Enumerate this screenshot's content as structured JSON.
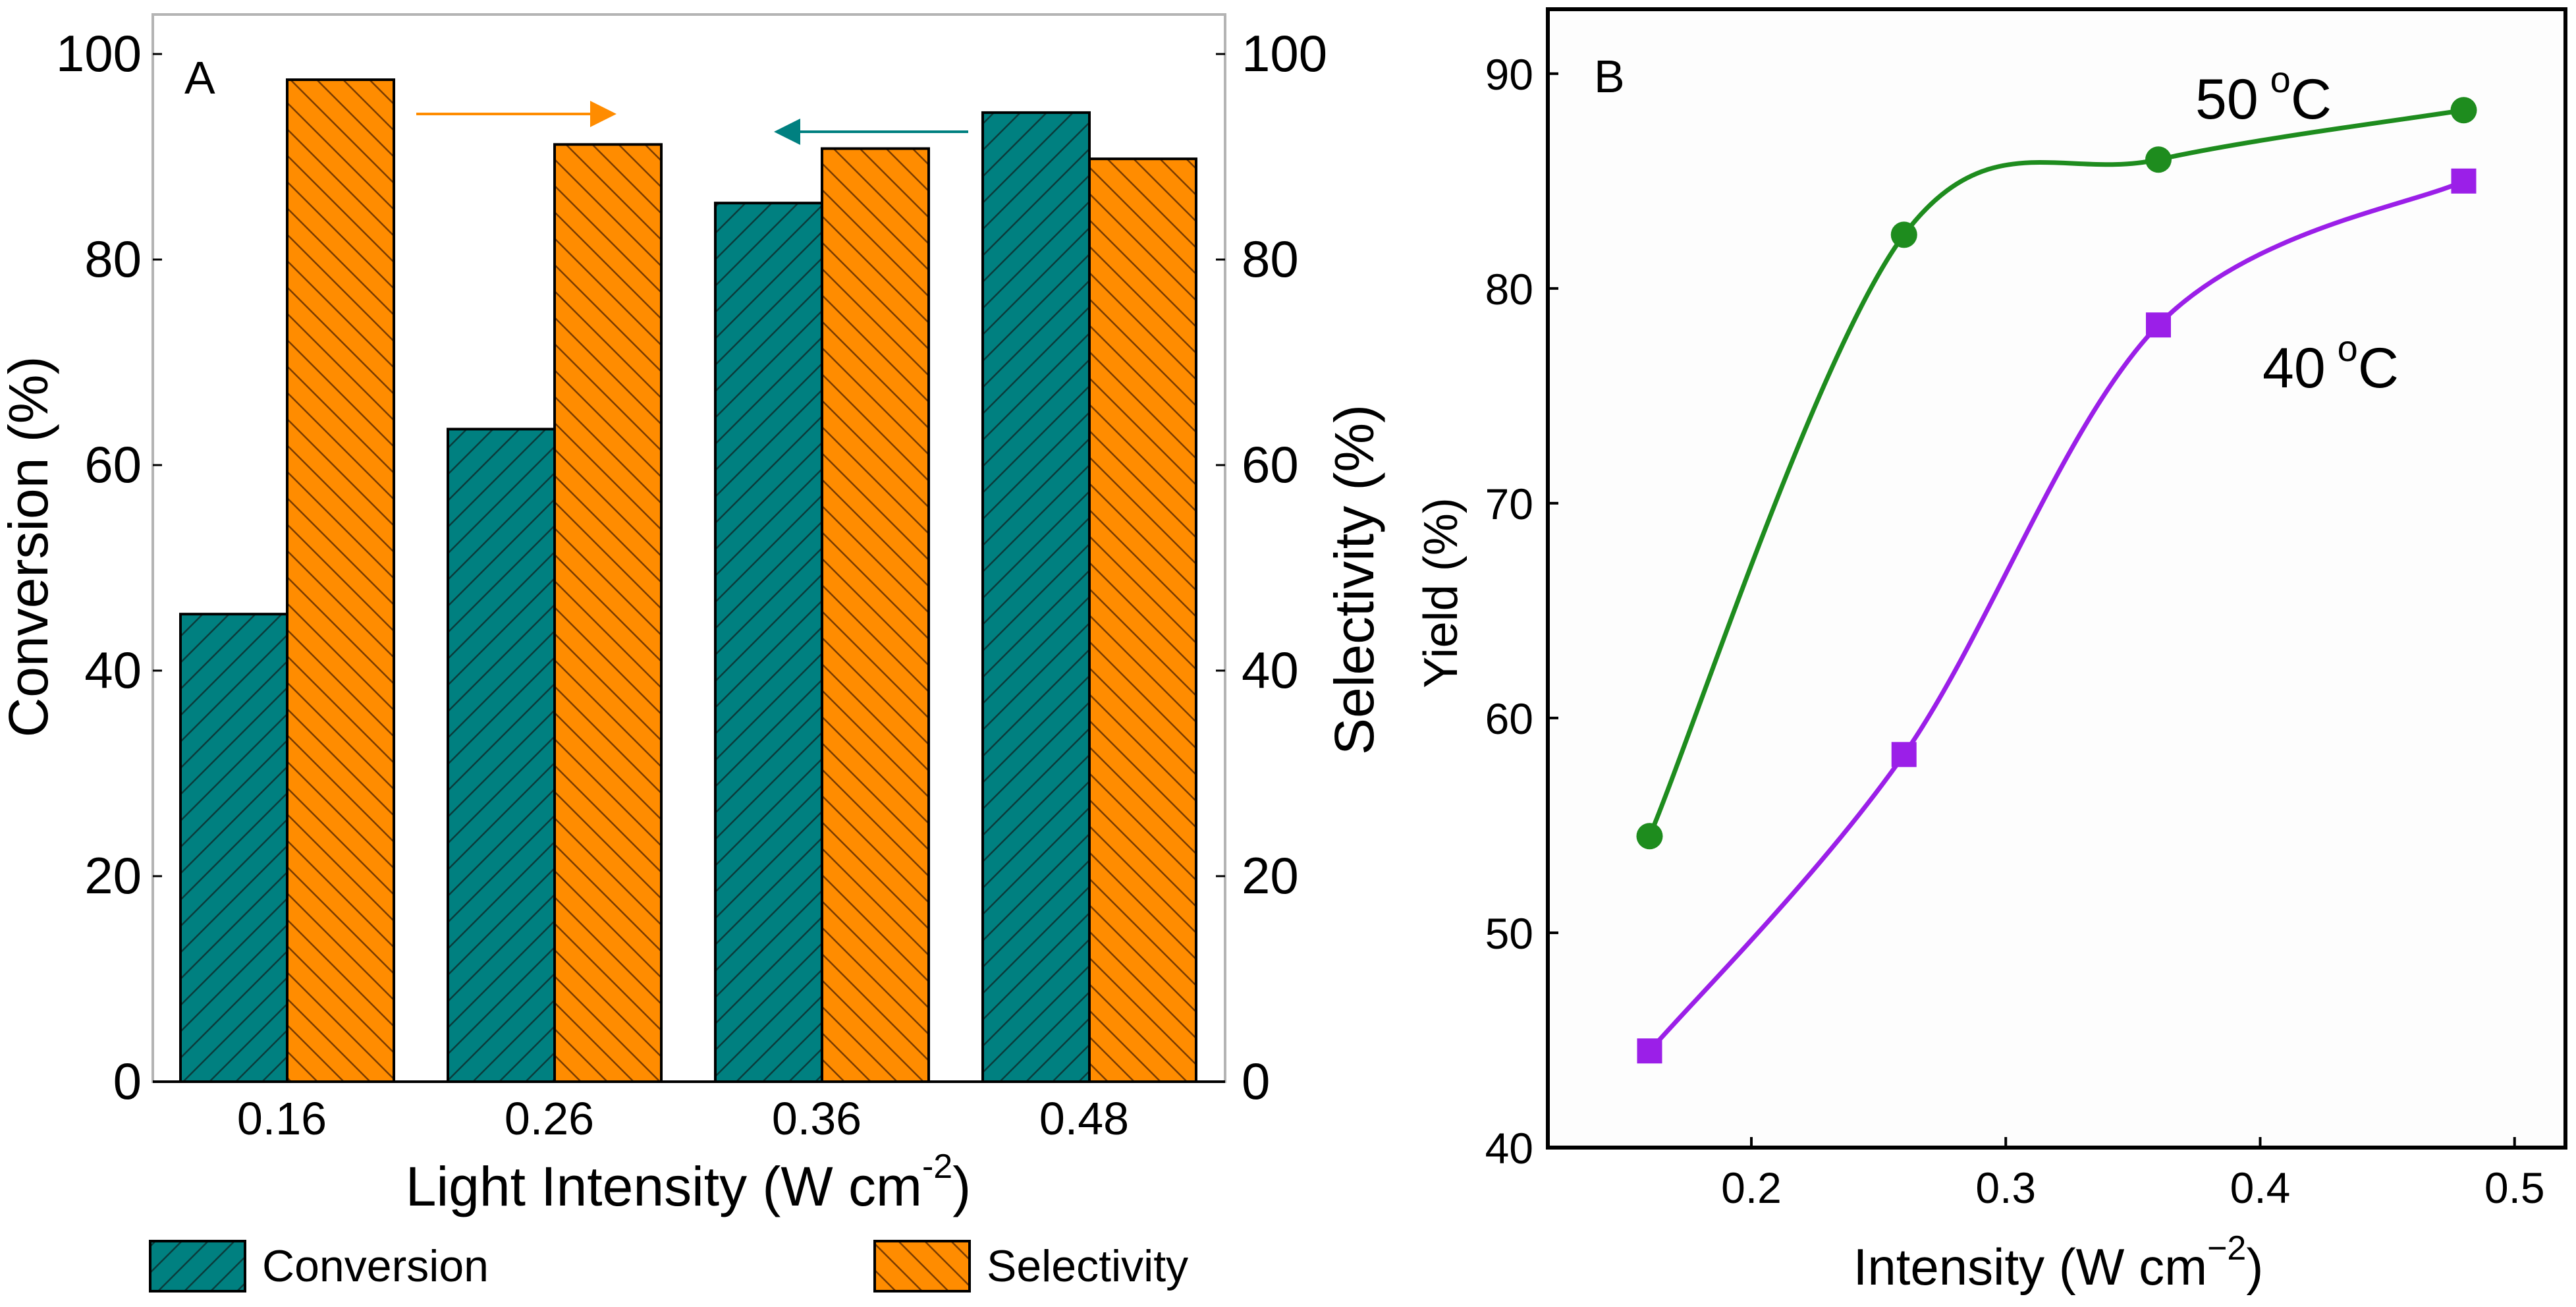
{
  "colors": {
    "conversion": "#008080",
    "selectivity": "#FF8C00",
    "series50": "#1E8C1E",
    "series40": "#9B1FE8",
    "axis": "#000000",
    "frameA": "#b4b4b4"
  },
  "chart_data": [
    {
      "panel": "A",
      "type": "bar",
      "title": "A",
      "categories": [
        "0.16",
        "0.26",
        "0.36",
        "0.48"
      ],
      "series": [
        {
          "name": "Conversion",
          "axis": "left",
          "values": [
            45.5,
            63.5,
            85.5,
            94.3
          ]
        },
        {
          "name": "Selectivity",
          "axis": "right",
          "values": [
            97.5,
            91.2,
            90.8,
            89.8
          ]
        }
      ],
      "xlabel": "Light Intensity (W cm",
      "xlabel_sup": "-2",
      "xlabel_close": ")",
      "ylabel_left": "Conversion (%)",
      "ylabel_right": "Selectivity (%)",
      "ylim_left": [
        0,
        100
      ],
      "ylim_right": [
        0,
        100
      ],
      "yticks_left": [
        "0",
        "20",
        "40",
        "60",
        "80",
        "100"
      ],
      "yticks_right": [
        "0",
        "20",
        "40",
        "60",
        "80",
        "100"
      ],
      "legend": [
        "Conversion",
        "Selectivity"
      ],
      "legend_position": "bottom"
    },
    {
      "panel": "B",
      "type": "scatter",
      "title": "B",
      "series": [
        {
          "name": "50 °C",
          "label": "50",
          "sup": "o",
          "unit": "C",
          "marker": "circle",
          "x": [
            0.16,
            0.26,
            0.36,
            0.48
          ],
          "y": [
            54.5,
            82.5,
            86.0,
            88.3
          ]
        },
        {
          "name": "40 °C",
          "label": "40",
          "sup": "o",
          "unit": "C",
          "marker": "square",
          "x": [
            0.16,
            0.26,
            0.36,
            0.48
          ],
          "y": [
            44.5,
            58.3,
            78.3,
            85.0
          ]
        }
      ],
      "xlabel": "Intensity (W cm",
      "xlabel_sup": "−2",
      "xlabel_close": ")",
      "ylabel": "Yield (%)",
      "xlim": [
        0.12,
        0.52
      ],
      "ylim": [
        40,
        93
      ],
      "xticks": [
        "0.2",
        "0.3",
        "0.4",
        "0.5"
      ],
      "yticks": [
        "40",
        "50",
        "60",
        "70",
        "80",
        "90"
      ]
    }
  ]
}
